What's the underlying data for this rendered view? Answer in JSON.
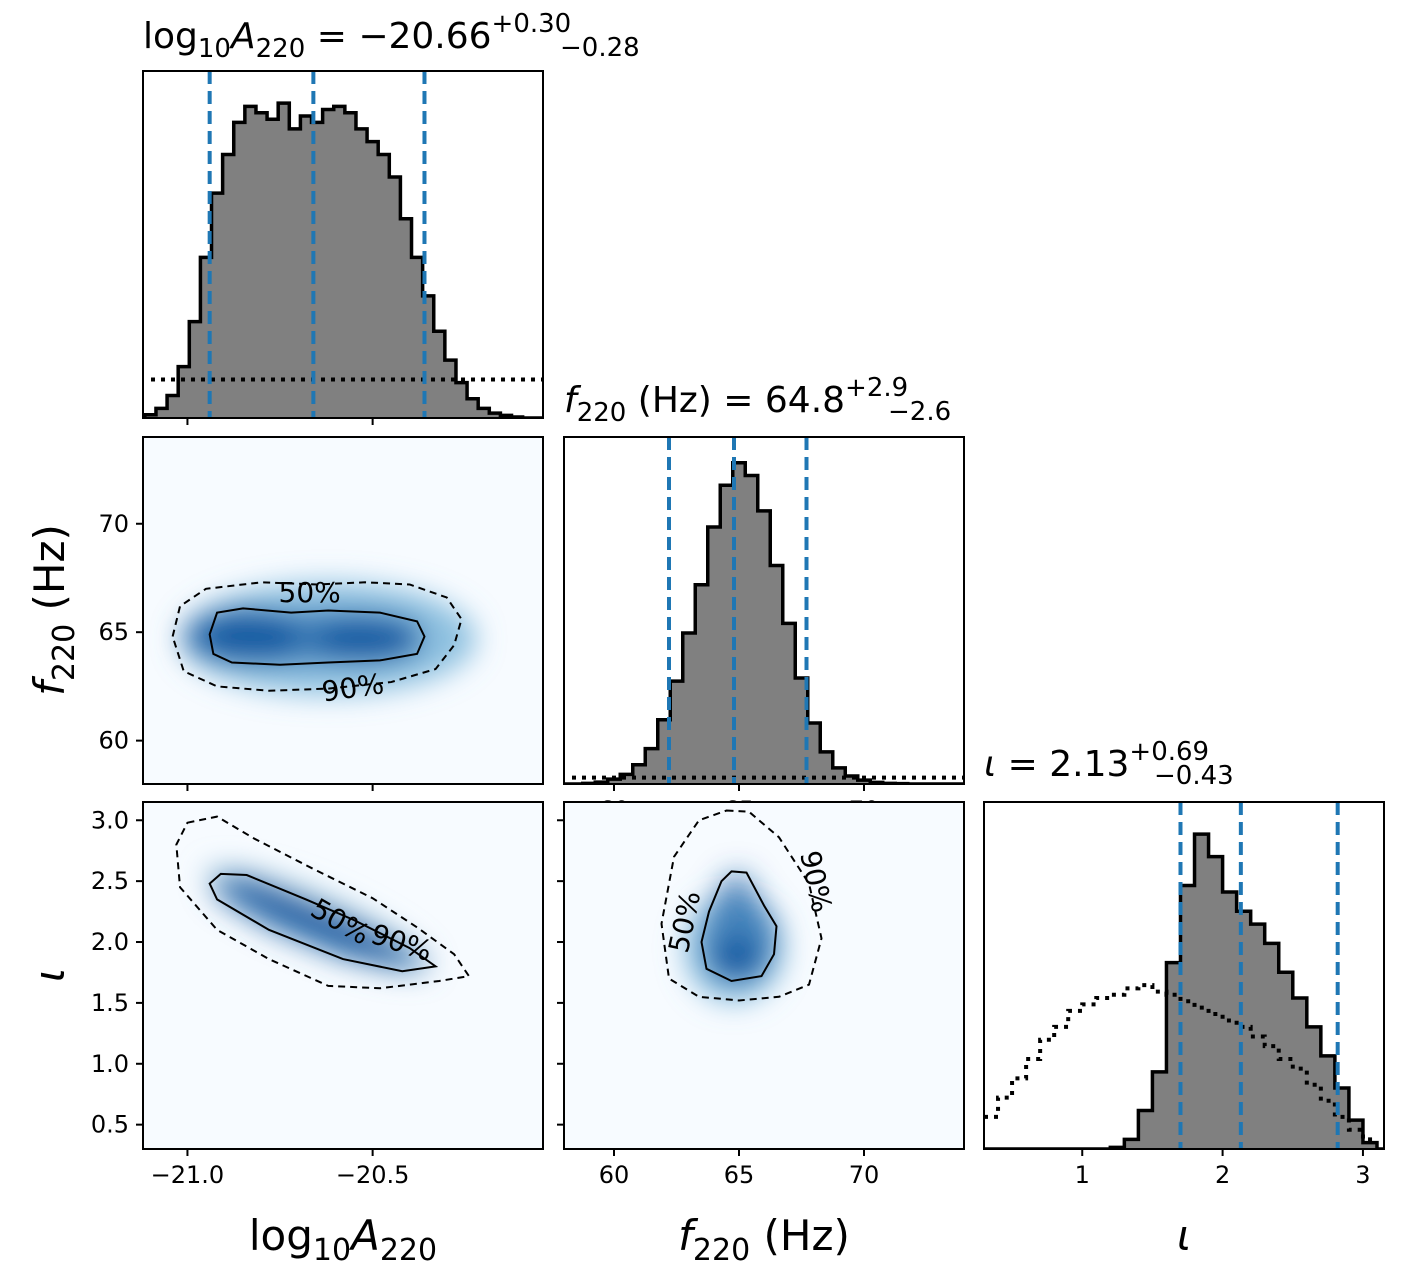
{
  "chart_data": {
    "type": "corner",
    "parameters": [
      {
        "key": "logA",
        "label": "log10A220",
        "label_main": "log",
        "label_sub": "10",
        "label_main2": "A",
        "label_sub2": "220",
        "range": [
          -21.12,
          -20.04
        ]
      },
      {
        "key": "f",
        "label": "f220 (Hz)",
        "label_main": "f",
        "label_sub": "220",
        "label_tail": " (Hz)",
        "range": [
          58.0,
          74.0
        ]
      },
      {
        "key": "iota",
        "label": "ι",
        "label_main": "ι",
        "range": [
          0.3,
          3.15
        ]
      }
    ],
    "titles": [
      {
        "param": "logA",
        "prefix": "log",
        "sub1": "10",
        "mid": "A",
        "sub2": "220",
        "eq": " = −20.66",
        "plus": "+0.30",
        "minus": "−0.28"
      },
      {
        "param": "f",
        "prefix": "f",
        "sub1": "220",
        "mid": " (Hz) = 64.8",
        "plus": "+2.9",
        "minus": "−2.6"
      },
      {
        "param": "iota",
        "prefix": "ι",
        "mid": " = 2.13",
        "plus": "+0.69",
        "minus": "−0.43"
      }
    ],
    "ticks": {
      "logA": {
        "values": [
          -21.0,
          -20.5
        ],
        "labels": [
          "−21.0",
          "−20.5"
        ]
      },
      "f": {
        "values": [
          60,
          65,
          70
        ],
        "labels": [
          "60",
          "65",
          "70"
        ]
      },
      "iota": {
        "values": [
          1,
          2,
          3
        ],
        "labels": [
          "1",
          "2",
          "3"
        ]
      },
      "f_y": {
        "values": [
          60,
          65,
          70
        ],
        "labels": [
          "60",
          "65",
          "70"
        ]
      },
      "iota_y": {
        "values": [
          0.5,
          1.0,
          1.5,
          2.0,
          2.5,
          3.0
        ],
        "labels": [
          "0.5",
          "1.0",
          "1.5",
          "2.0",
          "2.5",
          "3.0"
        ]
      }
    },
    "quantiles": {
      "logA": [
        -20.94,
        -20.66,
        -20.36
      ],
      "f": [
        62.2,
        64.8,
        67.7
      ],
      "iota": [
        1.7,
        2.13,
        2.82
      ]
    },
    "histograms": {
      "logA": {
        "x": [
          -21.1,
          -21.07,
          -21.04,
          -21.01,
          -20.98,
          -20.95,
          -20.92,
          -20.89,
          -20.86,
          -20.83,
          -20.8,
          -20.77,
          -20.74,
          -20.71,
          -20.68,
          -20.65,
          -20.62,
          -20.59,
          -20.56,
          -20.53,
          -20.5,
          -20.47,
          -20.44,
          -20.41,
          -20.38,
          -20.35,
          -20.32,
          -20.29,
          -20.26,
          -20.23,
          -20.2,
          -20.17,
          -20.14,
          -20.11
        ],
        "values": [
          0.01,
          0.03,
          0.07,
          0.16,
          0.3,
          0.5,
          0.7,
          0.82,
          0.92,
          0.97,
          0.95,
          0.93,
          0.98,
          0.9,
          0.94,
          0.92,
          0.96,
          0.97,
          0.95,
          0.9,
          0.86,
          0.82,
          0.75,
          0.62,
          0.5,
          0.38,
          0.27,
          0.18,
          0.11,
          0.06,
          0.03,
          0.015,
          0.008,
          0.003
        ],
        "prior": 0.12
      },
      "f": {
        "x": [
          58.5,
          59.0,
          59.5,
          60.0,
          60.5,
          61.0,
          61.5,
          62.0,
          62.5,
          63.0,
          63.5,
          64.0,
          64.5,
          65.0,
          65.5,
          66.0,
          66.5,
          67.0,
          67.5,
          68.0,
          68.5,
          69.0,
          69.5,
          70.0,
          70.5,
          71.0,
          71.5,
          72.0
        ],
        "values": [
          0.0,
          0.002,
          0.006,
          0.015,
          0.03,
          0.06,
          0.11,
          0.2,
          0.32,
          0.47,
          0.62,
          0.8,
          0.93,
          1.0,
          0.96,
          0.85,
          0.68,
          0.5,
          0.33,
          0.19,
          0.1,
          0.05,
          0.025,
          0.012,
          0.005,
          0.002,
          0.001,
          0.0
        ],
        "prior": 0.02
      },
      "iota": {
        "x": [
          0.35,
          0.45,
          0.55,
          0.65,
          0.75,
          0.85,
          0.95,
          1.05,
          1.15,
          1.25,
          1.35,
          1.45,
          1.55,
          1.65,
          1.75,
          1.85,
          1.95,
          2.05,
          2.15,
          2.25,
          2.35,
          2.45,
          2.55,
          2.65,
          2.75,
          2.85,
          2.95,
          3.05
        ],
        "values": [
          0.0,
          0.0,
          0.0,
          0.0,
          0.0,
          0.0,
          0.0,
          0.0,
          0.0,
          0.005,
          0.03,
          0.12,
          0.24,
          0.58,
          0.82,
          0.98,
          0.91,
          0.8,
          0.74,
          0.7,
          0.64,
          0.55,
          0.47,
          0.38,
          0.29,
          0.19,
          0.09,
          0.02
        ],
        "prior": [
          0.1,
          0.16,
          0.22,
          0.28,
          0.34,
          0.38,
          0.43,
          0.45,
          0.47,
          0.48,
          0.5,
          0.51,
          0.49,
          0.48,
          0.46,
          0.44,
          0.42,
          0.4,
          0.38,
          0.35,
          0.32,
          0.28,
          0.25,
          0.2,
          0.15,
          0.1,
          0.06,
          0.03
        ]
      }
    },
    "joint": [
      {
        "x": "logA",
        "y": "f",
        "contour50": [
          [
            -20.94,
            64.9
          ],
          [
            -20.92,
            65.9
          ],
          [
            -20.85,
            66.1
          ],
          [
            -20.72,
            65.9
          ],
          [
            -20.62,
            66.0
          ],
          [
            -20.48,
            65.9
          ],
          [
            -20.38,
            65.5
          ],
          [
            -20.36,
            64.8
          ],
          [
            -20.38,
            64.0
          ],
          [
            -20.48,
            63.7
          ],
          [
            -20.62,
            63.6
          ],
          [
            -20.75,
            63.5
          ],
          [
            -20.88,
            63.6
          ],
          [
            -20.93,
            64.0
          ]
        ],
        "contour90": [
          [
            -21.04,
            64.8
          ],
          [
            -21.02,
            66.2
          ],
          [
            -20.95,
            67.0
          ],
          [
            -20.8,
            67.3
          ],
          [
            -20.65,
            67.2
          ],
          [
            -20.52,
            67.3
          ],
          [
            -20.4,
            67.2
          ],
          [
            -20.3,
            66.6
          ],
          [
            -20.26,
            65.6
          ],
          [
            -20.28,
            64.4
          ],
          [
            -20.33,
            63.3
          ],
          [
            -20.45,
            62.7
          ],
          [
            -20.62,
            62.4
          ],
          [
            -20.78,
            62.3
          ],
          [
            -20.92,
            62.5
          ],
          [
            -21.01,
            63.2
          ]
        ],
        "label50": {
          "text": "50%",
          "at": [
            -20.67,
            66.4
          ],
          "angle": 0
        },
        "label90": {
          "text": "90%",
          "at": [
            -20.55,
            62.0
          ],
          "angle": -8
        },
        "density": [
          {
            "at": [
              -20.62,
              64.7
            ],
            "sx": 0.4,
            "sy": 2.6,
            "w": 1.0
          },
          {
            "at": [
              -20.85,
              64.8
            ],
            "sx": 0.16,
            "sy": 1.2,
            "w": 0.55
          },
          {
            "at": [
              -20.52,
              64.6
            ],
            "sx": 0.14,
            "sy": 1.0,
            "w": 0.55
          }
        ]
      },
      {
        "x": "logA",
        "y": "iota",
        "contour50": [
          [
            -20.91,
            2.56
          ],
          [
            -20.84,
            2.55
          ],
          [
            -20.68,
            2.35
          ],
          [
            -20.55,
            2.18
          ],
          [
            -20.4,
            1.95
          ],
          [
            -20.33,
            1.8
          ],
          [
            -20.42,
            1.76
          ],
          [
            -20.58,
            1.86
          ],
          [
            -20.78,
            2.1
          ],
          [
            -20.92,
            2.35
          ],
          [
            -20.94,
            2.48
          ]
        ],
        "contour90": [
          [
            -21.0,
            2.98
          ],
          [
            -20.92,
            3.03
          ],
          [
            -20.82,
            2.85
          ],
          [
            -20.66,
            2.6
          ],
          [
            -20.5,
            2.36
          ],
          [
            -20.38,
            2.12
          ],
          [
            -20.28,
            1.9
          ],
          [
            -20.24,
            1.72
          ],
          [
            -20.32,
            1.68
          ],
          [
            -20.48,
            1.62
          ],
          [
            -20.62,
            1.64
          ],
          [
            -20.78,
            1.86
          ],
          [
            -20.92,
            2.1
          ],
          [
            -21.02,
            2.45
          ],
          [
            -21.03,
            2.8
          ]
        ],
        "label50": {
          "text": "50%",
          "at": [
            -20.6,
            2.1
          ],
          "angle": 30
        },
        "label90": {
          "text": "90%",
          "at": [
            -20.43,
            1.92
          ],
          "angle": 18
        },
        "density": [
          {
            "at": [
              -20.65,
              2.18
            ],
            "sx": 0.28,
            "sy": 0.25,
            "rot": -0.92,
            "w": 1.0,
            "corr": true
          }
        ]
      },
      {
        "x": "f",
        "y": "iota",
        "contour50": [
          [
            64.7,
            2.58
          ],
          [
            65.3,
            2.57
          ],
          [
            66.0,
            2.3
          ],
          [
            66.5,
            2.13
          ],
          [
            66.4,
            1.9
          ],
          [
            65.9,
            1.72
          ],
          [
            64.7,
            1.68
          ],
          [
            63.7,
            1.78
          ],
          [
            63.5,
            2.0
          ],
          [
            63.8,
            2.25
          ],
          [
            64.3,
            2.5
          ]
        ],
        "contour90": [
          [
            64.5,
            3.08
          ],
          [
            65.4,
            3.07
          ],
          [
            66.6,
            2.86
          ],
          [
            67.8,
            2.48
          ],
          [
            68.3,
            2.03
          ],
          [
            67.8,
            1.65
          ],
          [
            66.6,
            1.55
          ],
          [
            65.0,
            1.52
          ],
          [
            63.4,
            1.55
          ],
          [
            62.2,
            1.7
          ],
          [
            61.9,
            2.15
          ],
          [
            62.4,
            2.7
          ],
          [
            63.4,
            3.0
          ]
        ],
        "label50": {
          "text": "50%",
          "at": [
            63.2,
            2.15
          ],
          "angle": -78
        },
        "label90": {
          "text": "90%",
          "at": [
            67.7,
            2.48
          ],
          "angle": 78
        },
        "density": [
          {
            "at": [
              64.8,
              1.95
            ],
            "sx": 2.0,
            "sy": 0.45,
            "w": 1.0
          },
          {
            "at": [
              64.9,
              1.85
            ],
            "sx": 1.0,
            "sy": 0.18,
            "w": 0.7
          }
        ]
      }
    ],
    "axis_titles": {
      "x0": "log10A220",
      "x1": "f220 (Hz)",
      "x2": "ι",
      "y1": "f220 (Hz)",
      "y2": "ι"
    },
    "colors": {
      "hist_fill": "#808080",
      "hist_edge": "#000000",
      "quantile": "#1f77b4",
      "density": "#08519c",
      "frame": "#000000"
    }
  }
}
